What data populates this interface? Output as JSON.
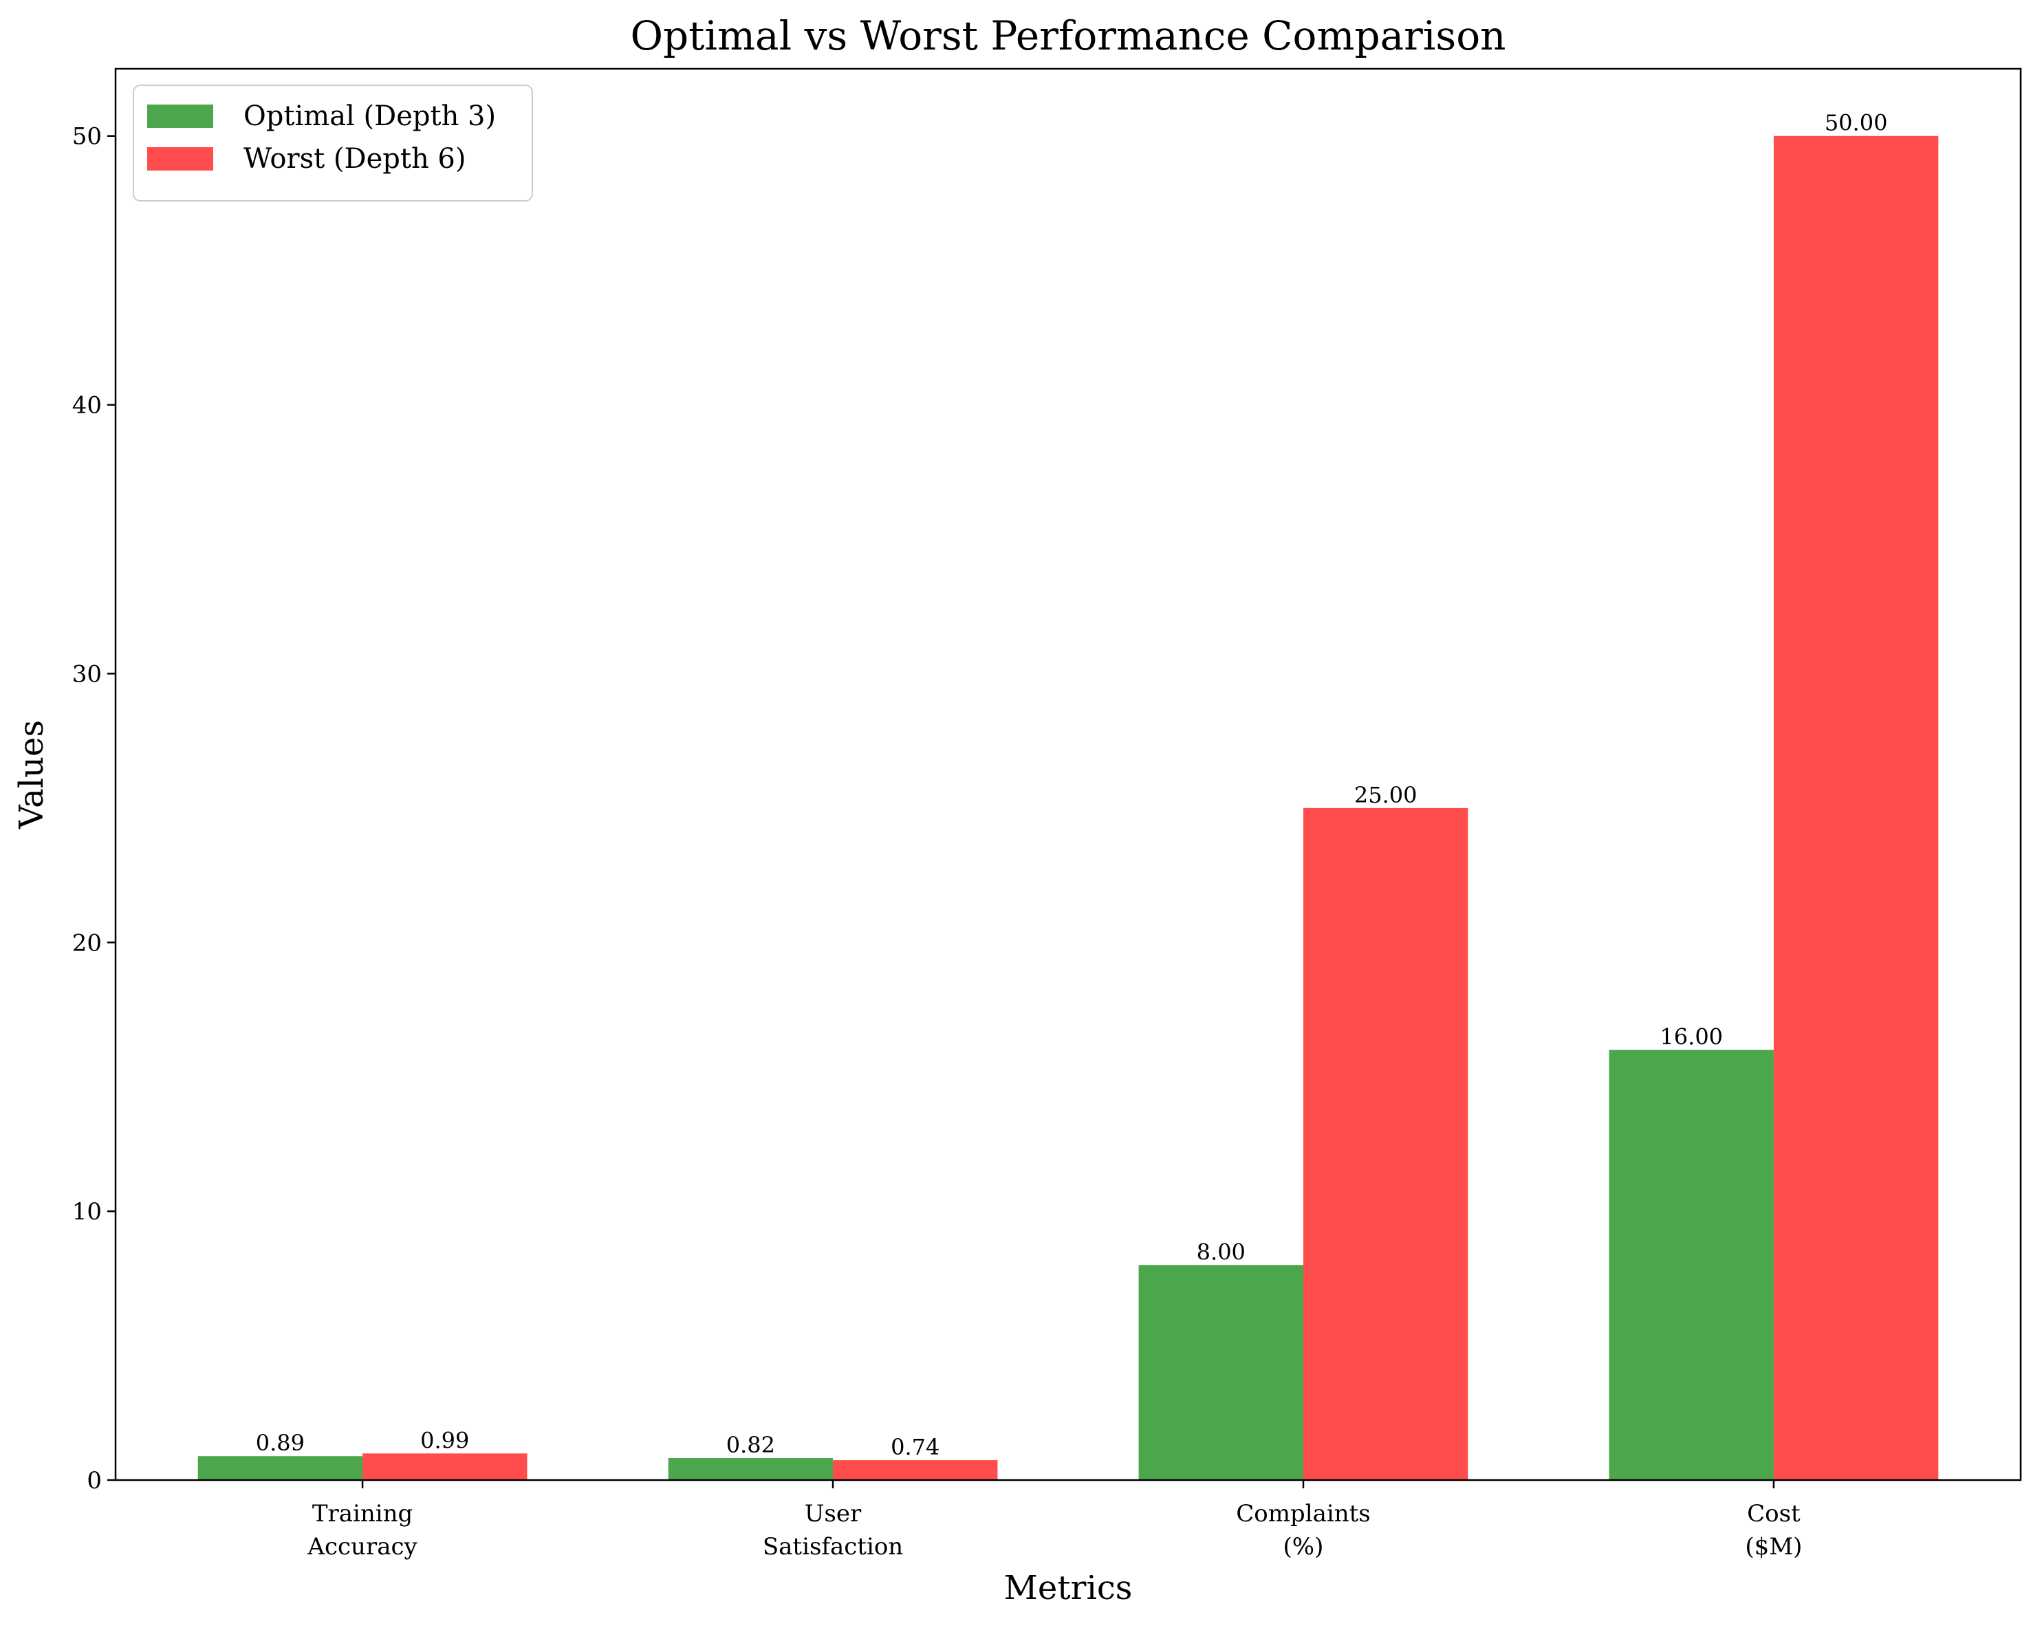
{
  "chart_data": {
    "type": "bar",
    "title": "Optimal vs Worst Performance Comparison",
    "xlabel": "Metrics",
    "ylabel": "Values",
    "categories": [
      [
        "Training",
        "Accuracy"
      ],
      [
        "User",
        "Satisfaction"
      ],
      [
        "Complaints",
        "(%)"
      ],
      [
        "Cost",
        "($M)"
      ]
    ],
    "series": [
      {
        "name": "Optimal (Depth 3)",
        "color": "#4ca64c",
        "values": [
          0.89,
          0.82,
          8.0,
          16.0
        ],
        "labels": [
          "0.89",
          "0.82",
          "8.00",
          "16.00"
        ]
      },
      {
        "name": "Worst (Depth 6)",
        "color": "#ff4c4c",
        "values": [
          0.99,
          0.74,
          25.0,
          50.0
        ],
        "labels": [
          "0.99",
          "0.74",
          "25.00",
          "50.00"
        ]
      }
    ],
    "ylim": [
      0,
      52.5
    ],
    "yticks": [
      0,
      10,
      20,
      30,
      40,
      50
    ],
    "legend_position": "top-left",
    "grid": false
  }
}
